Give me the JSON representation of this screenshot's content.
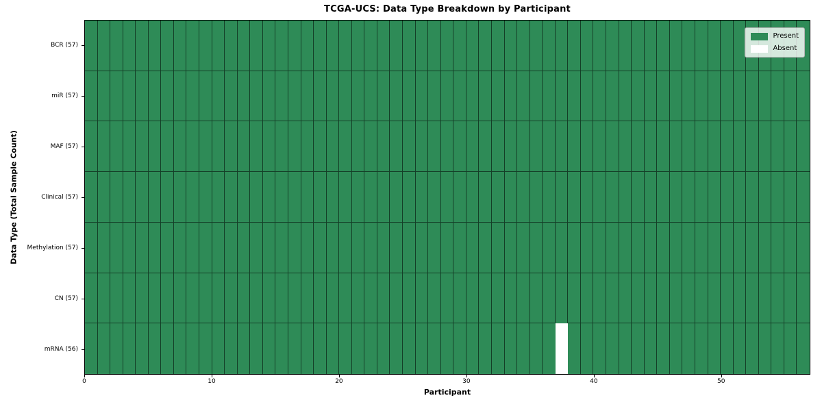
{
  "chart_data": {
    "type": "heatmap",
    "title": "TCGA-UCS: Data Type Breakdown by Participant",
    "xlabel": "Participant",
    "ylabel": "Data Type (Total Sample Count)",
    "n_participants": 57,
    "x_range": [
      0,
      57
    ],
    "x_ticks": [
      0,
      10,
      20,
      30,
      40,
      50
    ],
    "rows": [
      {
        "label": "BCR (57)",
        "data_type": "BCR",
        "total_samples": 57,
        "absent_participants": []
      },
      {
        "label": "miR (57)",
        "data_type": "miR",
        "total_samples": 57,
        "absent_participants": []
      },
      {
        "label": "MAF (57)",
        "data_type": "MAF",
        "total_samples": 57,
        "absent_participants": []
      },
      {
        "label": "Clinical (57)",
        "data_type": "Clinical",
        "total_samples": 57,
        "absent_participants": []
      },
      {
        "label": "Methylation (57)",
        "data_type": "Methylation",
        "total_samples": 57,
        "absent_participants": []
      },
      {
        "label": "CN (57)",
        "data_type": "CN",
        "total_samples": 57,
        "absent_participants": []
      },
      {
        "label": "mRNA (56)",
        "data_type": "mRNA",
        "total_samples": 56,
        "absent_participants": [
          37
        ]
      }
    ],
    "legend": {
      "position": "upper right",
      "entries": [
        {
          "label": "Present",
          "color": "#2e8b57"
        },
        {
          "label": "Absent",
          "color": "#ffffff"
        }
      ]
    },
    "colors": {
      "present": "#2e8b57",
      "absent": "#ffffff",
      "cell_edge": "rgba(0,0,0,0.55)",
      "spine": "#000000",
      "background": "#ffffff"
    }
  }
}
